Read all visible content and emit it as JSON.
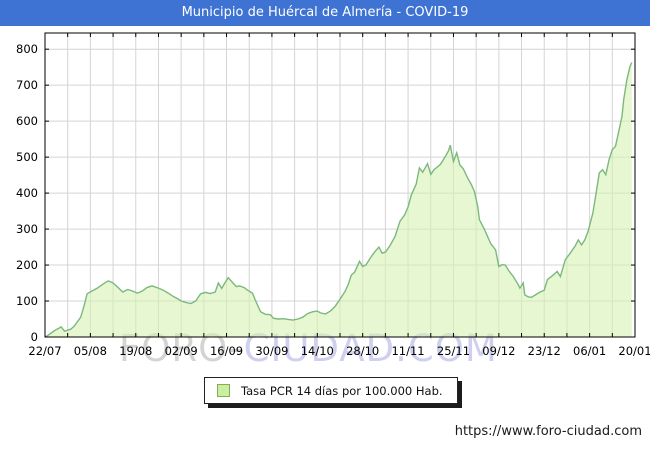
{
  "header": {
    "title": "Municipio de Huércal de Almería - COVID-19"
  },
  "colors": {
    "title_bar": "#3e72d3",
    "title_text": "#ffffff",
    "grid": "#d4d4d4",
    "axis": "#000000",
    "area_line": "#7cb87f",
    "area_fill": "#d6f2b2",
    "area_fill_opacity": 0.6,
    "watermark_gray": "#d4d4d4",
    "watermark_lavender": "#cfcfef"
  },
  "watermark": {
    "part1": "FORO-",
    "part1_color": "#d4d4d4",
    "part2": "CIUDAD.COM",
    "part2_color": "#cfcfef"
  },
  "legend": {
    "label": "Tasa PCR 14 días por 100.000 Hab.",
    "swatch_fill": "#c9ef9f",
    "swatch_border": "#86a95f"
  },
  "footer": {
    "url": "https://www.foro-ciudad.com"
  },
  "chart_data": {
    "type": "area",
    "title": "Municipio de Huércal de Almería - COVID-19",
    "series_name": "Tasa PCR 14 días por 100.000 Hab.",
    "xlabel": "",
    "ylabel": "",
    "x_tick_labels": [
      "22/07",
      "05/08",
      "19/08",
      "02/09",
      "16/09",
      "30/09",
      "14/10",
      "28/10",
      "11/11",
      "25/11",
      "09/12",
      "23/12",
      "06/01",
      "20/01"
    ],
    "x_tick_interval_days": 14,
    "x_minor_grid_interval_days": 7,
    "x_range_days": [
      0,
      182
    ],
    "y_ticks": [
      0,
      100,
      200,
      300,
      400,
      500,
      600,
      700,
      800
    ],
    "ylim": [
      0,
      845
    ],
    "grid": true,
    "legend_position": "bottom-center",
    "points": [
      [
        0,
        0
      ],
      [
        1,
        5
      ],
      [
        3,
        18
      ],
      [
        5,
        28
      ],
      [
        6,
        16
      ],
      [
        8,
        22
      ],
      [
        9,
        30
      ],
      [
        11,
        55
      ],
      [
        12,
        85
      ],
      [
        13,
        120
      ],
      [
        14.5,
        128
      ],
      [
        16,
        135
      ],
      [
        18,
        148
      ],
      [
        19.5,
        156
      ],
      [
        21,
        150
      ],
      [
        22.5,
        138
      ],
      [
        24,
        125
      ],
      [
        25.5,
        132
      ],
      [
        27,
        128
      ],
      [
        28.5,
        122
      ],
      [
        30,
        128
      ],
      [
        31.5,
        138
      ],
      [
        33,
        142
      ],
      [
        35,
        136
      ],
      [
        36.5,
        130
      ],
      [
        38,
        122
      ],
      [
        39.5,
        113
      ],
      [
        41,
        106
      ],
      [
        42,
        100
      ],
      [
        43.5,
        96
      ],
      [
        45,
        93
      ],
      [
        46.5,
        100
      ],
      [
        48,
        120
      ],
      [
        49.5,
        124
      ],
      [
        51,
        121
      ],
      [
        52.5,
        125
      ],
      [
        53.5,
        150
      ],
      [
        54.5,
        135
      ],
      [
        56,
        158
      ],
      [
        56.5,
        165
      ],
      [
        58,
        150
      ],
      [
        59,
        140
      ],
      [
        60,
        142
      ],
      [
        61.5,
        137
      ],
      [
        62.5,
        130
      ],
      [
        64,
        122
      ],
      [
        65,
        100
      ],
      [
        66.5,
        70
      ],
      [
        68,
        63
      ],
      [
        69.5,
        62
      ],
      [
        70.5,
        52
      ],
      [
        72,
        50
      ],
      [
        73.5,
        51
      ],
      [
        75,
        49
      ],
      [
        76.5,
        47
      ],
      [
        78,
        50
      ],
      [
        79.5,
        55
      ],
      [
        81,
        65
      ],
      [
        82.5,
        70
      ],
      [
        84,
        72
      ],
      [
        85,
        67
      ],
      [
        86.5,
        64
      ],
      [
        88,
        72
      ],
      [
        89.5,
        85
      ],
      [
        91,
        105
      ],
      [
        92.5,
        126
      ],
      [
        93.5,
        145
      ],
      [
        94.5,
        172
      ],
      [
        95.5,
        180
      ],
      [
        97,
        210
      ],
      [
        98,
        196
      ],
      [
        99,
        200
      ],
      [
        100,
        215
      ],
      [
        101,
        228
      ],
      [
        102,
        240
      ],
      [
        103,
        250
      ],
      [
        104,
        233
      ],
      [
        105,
        236
      ],
      [
        106.5,
        255
      ],
      [
        108,
        280
      ],
      [
        109.5,
        322
      ],
      [
        111,
        340
      ],
      [
        112,
        362
      ],
      [
        113,
        395
      ],
      [
        114.5,
        425
      ],
      [
        115.5,
        470
      ],
      [
        116.5,
        458
      ],
      [
        118,
        482
      ],
      [
        119,
        452
      ],
      [
        120,
        465
      ],
      [
        122,
        480
      ],
      [
        123.5,
        502
      ],
      [
        124.5,
        518
      ],
      [
        125,
        533
      ],
      [
        126,
        488
      ],
      [
        127,
        512
      ],
      [
        128,
        478
      ],
      [
        129,
        468
      ],
      [
        130.5,
        440
      ],
      [
        131.5,
        424
      ],
      [
        132.5,
        404
      ],
      [
        133.5,
        362
      ],
      [
        134,
        326
      ],
      [
        135.5,
        300
      ],
      [
        136.5,
        280
      ],
      [
        137.5,
        260
      ],
      [
        139,
        242
      ],
      [
        140,
        196
      ],
      [
        141,
        201
      ],
      [
        142,
        200
      ],
      [
        143,
        185
      ],
      [
        144.5,
        168
      ],
      [
        146,
        145
      ],
      [
        146.5,
        136
      ],
      [
        147.5,
        150
      ],
      [
        148,
        117
      ],
      [
        149,
        112
      ],
      [
        150,
        110
      ],
      [
        151.5,
        118
      ],
      [
        152.5,
        124
      ],
      [
        154,
        130
      ],
      [
        155,
        160
      ],
      [
        156.5,
        170
      ],
      [
        158,
        182
      ],
      [
        159,
        168
      ],
      [
        160.5,
        215
      ],
      [
        162,
        233
      ],
      [
        163.5,
        252
      ],
      [
        164.5,
        270
      ],
      [
        165.5,
        256
      ],
      [
        166.5,
        270
      ],
      [
        167.5,
        293
      ],
      [
        169,
        345
      ],
      [
        170,
        400
      ],
      [
        171,
        456
      ],
      [
        172,
        465
      ],
      [
        173,
        451
      ],
      [
        174,
        493
      ],
      [
        175,
        521
      ],
      [
        176,
        530
      ],
      [
        177,
        572
      ],
      [
        178,
        614
      ],
      [
        178.5,
        660
      ],
      [
        179.5,
        716
      ],
      [
        180.5,
        753
      ],
      [
        181,
        763
      ]
    ]
  }
}
